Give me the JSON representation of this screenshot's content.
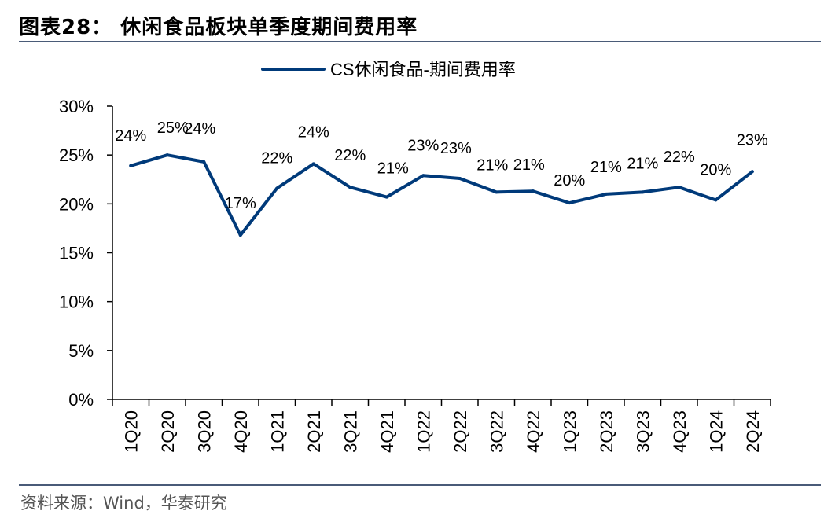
{
  "figure": {
    "title": "图表28： 休闲食品板块单季度期间费用率",
    "source": "资料来源：Wind，华泰研究"
  },
  "chart_data": {
    "type": "line",
    "title": "",
    "xlabel": "",
    "ylabel": "",
    "categories": [
      "1Q20",
      "2Q20",
      "3Q20",
      "4Q20",
      "1Q21",
      "2Q21",
      "3Q21",
      "4Q21",
      "1Q22",
      "2Q22",
      "3Q22",
      "4Q22",
      "1Q23",
      "2Q23",
      "3Q23",
      "4Q23",
      "1Q24",
      "2Q24"
    ],
    "series": [
      {
        "name": "CS休闲食品-期间费用率",
        "color": "#003a7a",
        "values": [
          23.9,
          25.0,
          24.3,
          16.8,
          21.6,
          24.1,
          21.7,
          20.7,
          22.9,
          22.6,
          21.2,
          21.3,
          20.1,
          21.0,
          21.2,
          21.7,
          20.4,
          23.3
        ],
        "labels": [
          "24%",
          "25%",
          "24%",
          "17%",
          "22%",
          "24%",
          "22%",
          "21%",
          "23%",
          "23%",
          "21%",
          "21%",
          "20%",
          "21%",
          "21%",
          "22%",
          "20%",
          "23%"
        ]
      }
    ],
    "ylim": [
      0,
      30
    ],
    "yticks": [
      0,
      5,
      10,
      15,
      20,
      25,
      30
    ],
    "ytick_labels": [
      "0%",
      "5%",
      "10%",
      "15%",
      "20%",
      "25%",
      "30%"
    ],
    "legend_position": "top-center",
    "grid": false
  }
}
